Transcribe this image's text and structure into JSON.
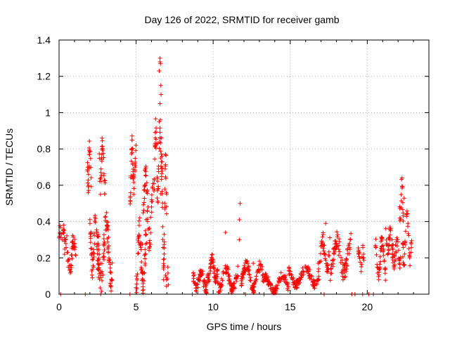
{
  "chart_data": {
    "type": "scatter",
    "title": "Day 126 of 2022, SRMTID for receiver gamb",
    "xlabel": "GPS time / hours",
    "ylabel": "SRMTID / TECUs",
    "xlim": [
      0,
      24
    ],
    "ylim": [
      0,
      1.4
    ],
    "x_ticks": [
      0,
      5,
      10,
      15,
      20
    ],
    "x_tick_labels": [
      "0",
      "5",
      "10",
      "15",
      "20"
    ],
    "y_ticks": [
      0,
      0.2,
      0.4,
      0.6,
      0.8,
      1.0,
      1.2,
      1.4
    ],
    "y_tick_labels": [
      "0",
      "0.2",
      "0.4",
      "0.6",
      "0.8",
      "1",
      "1.2",
      "1.4"
    ],
    "grid": true,
    "marker": "plus",
    "color": "#ff0000",
    "series": [
      {
        "name": "SRMTID",
        "segments": [
          {
            "x0": 0.0,
            "x1": 0.35,
            "y0": 0.3,
            "y1": 0.36,
            "spread": 0.03,
            "n": 18
          },
          {
            "x0": 0.35,
            "x1": 1.1,
            "y0": 0.13,
            "y1": 0.3,
            "spread": 0.05,
            "n": 45
          },
          {
            "x0": 1.8,
            "x1": 2.1,
            "y0": 0.6,
            "y1": 0.83,
            "spread": 0.06,
            "n": 25
          },
          {
            "x0": 2.0,
            "x1": 2.6,
            "y0": 0.14,
            "y1": 0.42,
            "spread": 0.07,
            "n": 55
          },
          {
            "x0": 2.6,
            "x1": 3.0,
            "y0": 0.6,
            "y1": 0.84,
            "spread": 0.06,
            "n": 30
          },
          {
            "x0": 2.5,
            "x1": 3.5,
            "y0": 0.08,
            "y1": 0.4,
            "spread": 0.08,
            "n": 80
          },
          {
            "x0": 4.6,
            "x1": 5.0,
            "y0": 0.55,
            "y1": 0.82,
            "spread": 0.06,
            "n": 40
          },
          {
            "x0": 5.0,
            "x1": 5.7,
            "y0": 0.05,
            "y1": 0.35,
            "spread": 0.08,
            "n": 60
          },
          {
            "x0": 5.4,
            "x1": 6.2,
            "y0": 0.3,
            "y1": 0.65,
            "spread": 0.08,
            "n": 55
          },
          {
            "x0": 6.2,
            "x1": 6.6,
            "y0": 0.55,
            "y1": 0.9,
            "spread": 0.08,
            "n": 35
          },
          {
            "x0": 6.6,
            "x1": 7.0,
            "y0": 0.15,
            "y1": 0.72,
            "spread": 0.09,
            "n": 45
          },
          {
            "x0": 6.9,
            "x1": 7.1,
            "y0": 0.05,
            "y1": 0.12,
            "spread": 0.03,
            "n": 8
          },
          {
            "x0": 8.7,
            "x1": 9.6,
            "y0": 0.03,
            "y1": 0.12,
            "spread": 0.03,
            "n": 60
          },
          {
            "x0": 9.6,
            "x1": 10.3,
            "y0": 0.08,
            "y1": 0.2,
            "spread": 0.03,
            "n": 55
          },
          {
            "x0": 10.3,
            "x1": 11.6,
            "y0": 0.03,
            "y1": 0.14,
            "spread": 0.03,
            "n": 80
          },
          {
            "x0": 11.8,
            "x1": 13.2,
            "y0": 0.03,
            "y1": 0.16,
            "spread": 0.03,
            "n": 90
          },
          {
            "x0": 13.2,
            "x1": 14.9,
            "y0": 0.01,
            "y1": 0.1,
            "spread": 0.025,
            "n": 100
          },
          {
            "x0": 14.9,
            "x1": 16.8,
            "y0": 0.05,
            "y1": 0.14,
            "spread": 0.025,
            "n": 100
          },
          {
            "x0": 16.8,
            "x1": 17.6,
            "y0": 0.12,
            "y1": 0.3,
            "spread": 0.05,
            "n": 45
          },
          {
            "x0": 17.6,
            "x1": 19.0,
            "y0": 0.12,
            "y1": 0.3,
            "spread": 0.05,
            "n": 80
          },
          {
            "x0": 19.4,
            "x1": 19.8,
            "y0": 0.14,
            "y1": 0.24,
            "spread": 0.03,
            "n": 20
          },
          {
            "x0": 20.5,
            "x1": 21.2,
            "y0": 0.1,
            "y1": 0.3,
            "spread": 0.04,
            "n": 45
          },
          {
            "x0": 21.2,
            "x1": 21.7,
            "y0": 0.25,
            "y1": 0.34,
            "spread": 0.04,
            "n": 30
          },
          {
            "x0": 21.6,
            "x1": 22.2,
            "y0": 0.16,
            "y1": 0.28,
            "spread": 0.04,
            "n": 35
          },
          {
            "x0": 22.1,
            "x1": 22.4,
            "y0": 0.42,
            "y1": 0.62,
            "spread": 0.04,
            "n": 20
          },
          {
            "x0": 22.3,
            "x1": 22.9,
            "y0": 0.19,
            "y1": 0.44,
            "spread": 0.05,
            "n": 35
          }
        ],
        "points": [
          {
            "x": 6.55,
            "y": 1.3
          },
          {
            "x": 6.55,
            "y": 1.28
          },
          {
            "x": 6.58,
            "y": 1.27
          },
          {
            "x": 6.5,
            "y": 1.23
          },
          {
            "x": 6.6,
            "y": 1.15
          },
          {
            "x": 6.62,
            "y": 1.1
          },
          {
            "x": 6.55,
            "y": 1.05
          },
          {
            "x": 6.57,
            "y": 0.96
          },
          {
            "x": 6.5,
            "y": 0.95
          },
          {
            "x": 6.65,
            "y": 0.86
          },
          {
            "x": 6.4,
            "y": 0.83
          },
          {
            "x": 6.68,
            "y": 0.76
          },
          {
            "x": 11.75,
            "y": 0.5
          },
          {
            "x": 11.7,
            "y": 0.41
          },
          {
            "x": 11.7,
            "y": 0.3
          },
          {
            "x": 10.8,
            "y": 0.34
          },
          {
            "x": 12.6,
            "y": 0.17
          },
          {
            "x": 17.3,
            "y": 0.39
          },
          {
            "x": 0.1,
            "y": 0.0
          },
          {
            "x": 1.7,
            "y": 0.0
          },
          {
            "x": 2.7,
            "y": 0.0
          },
          {
            "x": 4.6,
            "y": 0.0
          },
          {
            "x": 8.65,
            "y": 0.0
          },
          {
            "x": 12.1,
            "y": 0.0
          },
          {
            "x": 13.3,
            "y": 0.0
          },
          {
            "x": 17.2,
            "y": 0.0
          },
          {
            "x": 19.0,
            "y": 0.0
          },
          {
            "x": 19.2,
            "y": 0.0
          },
          {
            "x": 19.7,
            "y": 0.0
          },
          {
            "x": 20.1,
            "y": 0.0
          },
          {
            "x": 20.4,
            "y": 0.0
          }
        ]
      }
    ]
  }
}
